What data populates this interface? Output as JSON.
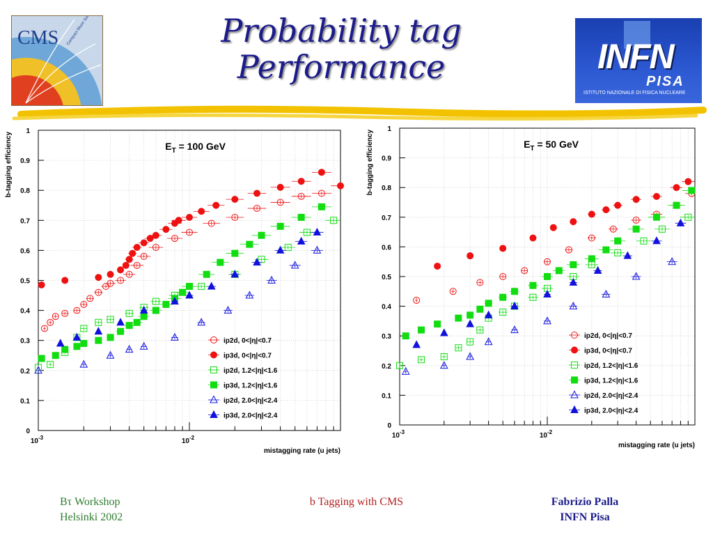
{
  "slide": {
    "title_line1": "Probability tag",
    "title_line2": "Performance",
    "logo_left_text": "CMS",
    "logo_left_subtext": "Compact Muon Solenoid",
    "logo_right_text": "INFN",
    "logo_right_subtext": "PISA",
    "logo_right_caption": "ISTITUTO NAZIONALE DI FISICA NUCLEARE",
    "footer_left_line1": "Bτ Workshop",
    "footer_left_line2": "Helsinki 2002",
    "footer_center": "b Tagging with CMS",
    "footer_right_line1": "Fabrizio Palla",
    "footer_right_line2": "INFN Pisa",
    "colors": {
      "title": "#1b1b8a",
      "red": "#ee1111",
      "green": "#11dd11",
      "blue": "#1111dd"
    }
  },
  "chart_data": [
    {
      "type": "scatter",
      "annotation": "E_T = 100 GeV",
      "ann_main": "E",
      "ann_sub": "T",
      "ann_rest": " = 100 GeV",
      "xlabel": "mistagging rate (u jets)",
      "ylabel": "b-tagging efficiency",
      "x_scale": "log",
      "xlim": [
        0.001,
        0.1
      ],
      "ylim": [
        0,
        1
      ],
      "x_tick_labels": [
        {
          "value": 0.001,
          "base": "10",
          "exp": "-3"
        },
        {
          "value": 0.01,
          "base": "10",
          "exp": "-2"
        }
      ],
      "y_ticks": [
        0,
        0.1,
        0.2,
        0.3,
        0.4,
        0.5,
        0.6,
        0.7,
        0.8,
        0.9,
        1
      ],
      "y_tick_labels": [
        "0",
        "0.1",
        "0.2",
        "0.3",
        "0.4",
        "0.5",
        "0.6",
        "0.7",
        "0.8",
        "0.9",
        "1"
      ],
      "grid": true,
      "legend_position": "bottom-right",
      "series": [
        {
          "name": "ip2d, 0<|η|<0.7",
          "color": "#ee1111",
          "marker": "circle",
          "filled": false,
          "x": [
            0.0011,
            0.0012,
            0.0013,
            0.0015,
            0.0018,
            0.002,
            0.0022,
            0.0025,
            0.0028,
            0.003,
            0.0035,
            0.004,
            0.0045,
            0.005,
            0.006,
            0.008,
            0.01,
            0.014,
            0.02,
            0.028,
            0.04,
            0.055,
            0.075
          ],
          "y": [
            0.34,
            0.36,
            0.38,
            0.39,
            0.4,
            0.42,
            0.44,
            0.46,
            0.48,
            0.49,
            0.5,
            0.52,
            0.55,
            0.58,
            0.61,
            0.64,
            0.66,
            0.69,
            0.71,
            0.74,
            0.76,
            0.78,
            0.79
          ]
        },
        {
          "name": "ip3d, 0<|η|<0.7",
          "color": "#ee1111",
          "marker": "circle",
          "filled": true,
          "x": [
            0.00105,
            0.0015,
            0.0025,
            0.003,
            0.0035,
            0.0038,
            0.004,
            0.0042,
            0.0045,
            0.005,
            0.0055,
            0.006,
            0.007,
            0.008,
            0.0085,
            0.01,
            0.012,
            0.015,
            0.02,
            0.028,
            0.04,
            0.055,
            0.075,
            0.1
          ],
          "y": [
            0.485,
            0.5,
            0.51,
            0.52,
            0.535,
            0.55,
            0.57,
            0.59,
            0.61,
            0.625,
            0.64,
            0.65,
            0.67,
            0.69,
            0.7,
            0.71,
            0.73,
            0.75,
            0.77,
            0.79,
            0.81,
            0.83,
            0.86,
            0.815
          ]
        },
        {
          "name": "ip2d, 1.2<|η|<1.6",
          "color": "#11dd11",
          "marker": "square",
          "filled": false,
          "x": [
            0.001,
            0.0012,
            0.0015,
            0.0018,
            0.002,
            0.0025,
            0.003,
            0.004,
            0.005,
            0.006,
            0.008,
            0.012,
            0.02,
            0.03,
            0.045,
            0.06,
            0.09
          ],
          "y": [
            0.21,
            0.22,
            0.26,
            0.31,
            0.34,
            0.36,
            0.37,
            0.39,
            0.41,
            0.43,
            0.45,
            0.48,
            0.52,
            0.57,
            0.61,
            0.66,
            0.7
          ]
        },
        {
          "name": "ip3d, 1.2<|η|<1.6",
          "color": "#11dd11",
          "marker": "square",
          "filled": true,
          "x": [
            0.00105,
            0.0013,
            0.0015,
            0.0018,
            0.002,
            0.0025,
            0.003,
            0.0035,
            0.004,
            0.0045,
            0.005,
            0.006,
            0.007,
            0.008,
            0.009,
            0.01,
            0.013,
            0.016,
            0.02,
            0.025,
            0.03,
            0.04,
            0.055,
            0.075
          ],
          "y": [
            0.24,
            0.25,
            0.27,
            0.28,
            0.29,
            0.3,
            0.31,
            0.33,
            0.35,
            0.36,
            0.38,
            0.4,
            0.42,
            0.44,
            0.46,
            0.48,
            0.52,
            0.56,
            0.59,
            0.62,
            0.65,
            0.68,
            0.71,
            0.745
          ]
        },
        {
          "name": "ip2d, 2.0<|η|<2.4",
          "color": "#1111dd",
          "marker": "triangle",
          "filled": false,
          "x": [
            0.001,
            0.002,
            0.003,
            0.004,
            0.005,
            0.008,
            0.012,
            0.018,
            0.025,
            0.035,
            0.05,
            0.07
          ],
          "y": [
            0.2,
            0.22,
            0.25,
            0.27,
            0.28,
            0.31,
            0.36,
            0.4,
            0.45,
            0.5,
            0.55,
            0.6
          ]
        },
        {
          "name": "ip3d, 2.0<|η|<2.4",
          "color": "#1111dd",
          "marker": "triangle",
          "filled": true,
          "x": [
            0.0014,
            0.0018,
            0.0025,
            0.0035,
            0.005,
            0.008,
            0.01,
            0.014,
            0.02,
            0.028,
            0.04,
            0.055,
            0.07
          ],
          "y": [
            0.29,
            0.31,
            0.33,
            0.36,
            0.4,
            0.43,
            0.45,
            0.48,
            0.52,
            0.56,
            0.6,
            0.63,
            0.66
          ]
        }
      ]
    },
    {
      "type": "scatter",
      "annotation": "E_T = 50 GeV",
      "ann_main": "E",
      "ann_sub": "T",
      "ann_rest": " = 50 GeV",
      "xlabel": "mistagging rate (u jets)",
      "ylabel": "b-tagging efficiency",
      "x_scale": "log",
      "xlim": [
        0.001,
        0.1
      ],
      "ylim": [
        0,
        1
      ],
      "x_tick_labels": [
        {
          "value": 0.001,
          "base": "10",
          "exp": "-3"
        },
        {
          "value": 0.01,
          "base": "10",
          "exp": "-2"
        }
      ],
      "y_ticks": [
        0,
        0.1,
        0.2,
        0.3,
        0.4,
        0.5,
        0.6,
        0.7,
        0.8,
        0.9,
        1
      ],
      "y_tick_labels": [
        "0",
        "0.1",
        "0.2",
        "0.3",
        "0.4",
        "0.5",
        "0.6",
        "0.7",
        "0.8",
        "0.9",
        "1"
      ],
      "grid": true,
      "legend_position": "bottom-right",
      "series": [
        {
          "name": "ip2d, 0<|η|<0.7",
          "color": "#ee1111",
          "marker": "circle",
          "filled": false,
          "x": [
            0.0013,
            0.0023,
            0.0035,
            0.005,
            0.007,
            0.01,
            0.014,
            0.02,
            0.028,
            0.04,
            0.055,
            0.075,
            0.095
          ],
          "y": [
            0.42,
            0.45,
            0.48,
            0.5,
            0.52,
            0.55,
            0.59,
            0.63,
            0.66,
            0.69,
            0.71,
            0.74,
            0.78
          ]
        },
        {
          "name": "ip3d, 0<|η|<0.7",
          "color": "#ee1111",
          "marker": "circle",
          "filled": true,
          "x": [
            0.0018,
            0.003,
            0.005,
            0.008,
            0.011,
            0.015,
            0.02,
            0.025,
            0.03,
            0.04,
            0.055,
            0.075,
            0.09
          ],
          "y": [
            0.535,
            0.57,
            0.595,
            0.63,
            0.665,
            0.685,
            0.71,
            0.725,
            0.74,
            0.76,
            0.77,
            0.8,
            0.82
          ]
        },
        {
          "name": "ip2d, 1.2<|η|<1.6",
          "color": "#11dd11",
          "marker": "square",
          "filled": false,
          "x": [
            0.001,
            0.0014,
            0.002,
            0.0025,
            0.003,
            0.0035,
            0.004,
            0.005,
            0.006,
            0.008,
            0.01,
            0.015,
            0.02,
            0.03,
            0.045,
            0.06,
            0.09
          ],
          "y": [
            0.2,
            0.22,
            0.23,
            0.26,
            0.28,
            0.32,
            0.36,
            0.38,
            0.4,
            0.43,
            0.46,
            0.5,
            0.54,
            0.58,
            0.62,
            0.66,
            0.7
          ]
        },
        {
          "name": "ip3d, 1.2<|η|<1.6",
          "color": "#11dd11",
          "marker": "square",
          "filled": true,
          "x": [
            0.0011,
            0.0014,
            0.0018,
            0.0025,
            0.003,
            0.0035,
            0.004,
            0.005,
            0.006,
            0.008,
            0.01,
            0.012,
            0.015,
            0.02,
            0.025,
            0.03,
            0.04,
            0.055,
            0.075,
            0.095
          ],
          "y": [
            0.3,
            0.32,
            0.34,
            0.36,
            0.37,
            0.39,
            0.41,
            0.43,
            0.45,
            0.47,
            0.5,
            0.52,
            0.54,
            0.56,
            0.59,
            0.62,
            0.66,
            0.7,
            0.74,
            0.79
          ]
        },
        {
          "name": "ip2d, 2.0<|η|<2.4",
          "color": "#1111dd",
          "marker": "triangle",
          "filled": false,
          "x": [
            0.0011,
            0.002,
            0.003,
            0.004,
            0.006,
            0.01,
            0.015,
            0.025,
            0.04,
            0.07
          ],
          "y": [
            0.18,
            0.2,
            0.23,
            0.28,
            0.32,
            0.35,
            0.4,
            0.44,
            0.5,
            0.55
          ]
        },
        {
          "name": "ip3d, 2.0<|η|<2.4",
          "color": "#1111dd",
          "marker": "triangle",
          "filled": true,
          "x": [
            0.0013,
            0.002,
            0.003,
            0.004,
            0.006,
            0.01,
            0.015,
            0.022,
            0.035,
            0.055,
            0.08
          ],
          "y": [
            0.27,
            0.31,
            0.34,
            0.37,
            0.4,
            0.44,
            0.48,
            0.52,
            0.57,
            0.62,
            0.68
          ]
        }
      ]
    }
  ]
}
